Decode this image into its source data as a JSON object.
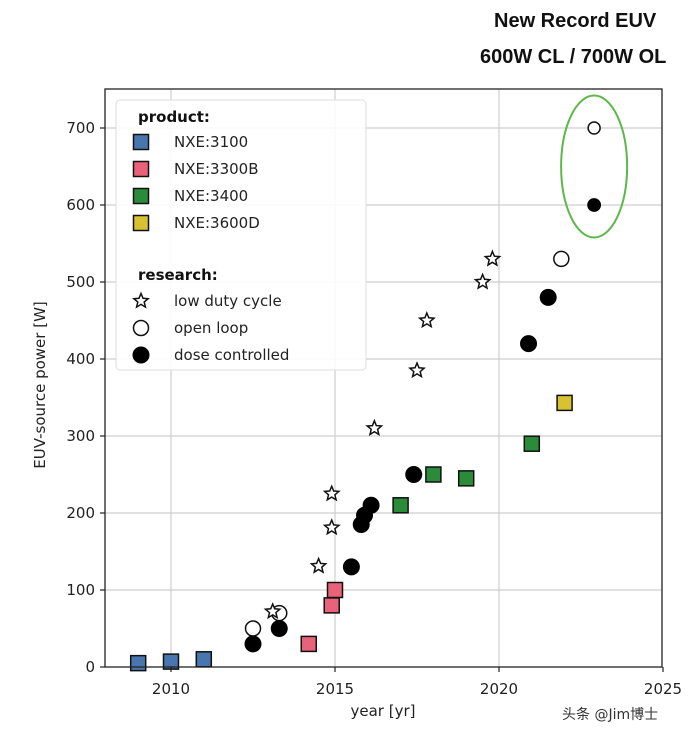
{
  "headline": {
    "line1": "New Record EUV",
    "line2": "600W CL / 700W OL"
  },
  "watermark": "头条 @Jim博士",
  "chart_data": {
    "type": "scatter",
    "title": "",
    "xlabel": "year [yr]",
    "ylabel": "EUV-source power [W]",
    "xlim": [
      2008,
      2025
    ],
    "ylim": [
      0,
      750
    ],
    "xticks": [
      2010,
      2015,
      2020,
      2025
    ],
    "yticks": [
      0,
      100,
      200,
      300,
      400,
      500,
      600,
      700
    ],
    "grid": true,
    "legend_position": "upper left",
    "legend": {
      "product_title": "product:",
      "research_title": "research:",
      "entries": [
        {
          "group": "product",
          "label": "NXE:3100",
          "marker": "square",
          "color": "#4a76b0"
        },
        {
          "group": "product",
          "label": "NXE:3300B",
          "marker": "square",
          "color": "#e8637a"
        },
        {
          "group": "product",
          "label": "NXE:3400",
          "marker": "square",
          "color": "#2a8c3a"
        },
        {
          "group": "product",
          "label": "NXE:3600D",
          "marker": "square",
          "color": "#d9c232"
        },
        {
          "group": "research",
          "label": "low duty cycle",
          "marker": "star",
          "color": "#ffffff"
        },
        {
          "group": "research",
          "label": "open loop",
          "marker": "circle-open",
          "color": "#ffffff"
        },
        {
          "group": "research",
          "label": "dose controlled",
          "marker": "circle-filled",
          "color": "#000000"
        }
      ]
    },
    "series": [
      {
        "name": "NXE:3100",
        "marker": "square",
        "color": "#4a76b0",
        "points": [
          [
            2009.0,
            5
          ],
          [
            2010.0,
            7
          ],
          [
            2011.0,
            10
          ]
        ]
      },
      {
        "name": "NXE:3300B",
        "marker": "square",
        "color": "#e8637a",
        "points": [
          [
            2014.2,
            30
          ],
          [
            2014.9,
            80
          ],
          [
            2015.0,
            100
          ]
        ]
      },
      {
        "name": "NXE:3400",
        "marker": "square",
        "color": "#2a8c3a",
        "points": [
          [
            2017.0,
            210
          ],
          [
            2018.0,
            250
          ],
          [
            2019.0,
            245
          ],
          [
            2021.0,
            290
          ]
        ]
      },
      {
        "name": "NXE:3600D",
        "marker": "square",
        "color": "#d9c232",
        "points": [
          [
            2022.0,
            343
          ]
        ]
      },
      {
        "name": "low duty cycle",
        "marker": "star",
        "color": "#ffffff",
        "points": [
          [
            2013.1,
            72
          ],
          [
            2014.5,
            131
          ],
          [
            2014.9,
            181
          ],
          [
            2014.9,
            225
          ],
          [
            2016.2,
            310
          ],
          [
            2017.5,
            385
          ],
          [
            2017.8,
            450
          ],
          [
            2019.5,
            500
          ],
          [
            2019.8,
            530
          ]
        ]
      },
      {
        "name": "open loop",
        "marker": "circle-open",
        "color": "#ffffff",
        "points": [
          [
            2012.5,
            50
          ],
          [
            2013.3,
            70
          ],
          [
            2021.9,
            530
          ],
          [
            2022.9,
            700
          ]
        ]
      },
      {
        "name": "dose controlled",
        "marker": "circle-filled",
        "color": "#000000",
        "points": [
          [
            2012.5,
            30
          ],
          [
            2013.3,
            50
          ],
          [
            2015.5,
            130
          ],
          [
            2015.8,
            185
          ],
          [
            2015.9,
            197
          ],
          [
            2016.1,
            210
          ],
          [
            2017.4,
            250
          ],
          [
            2020.9,
            420
          ],
          [
            2021.5,
            480
          ],
          [
            2022.9,
            600
          ]
        ]
      }
    ],
    "annotations": [
      {
        "type": "ellipse",
        "color": "#5cb848",
        "around_points": [
          [
            2022.9,
            700
          ],
          [
            2022.9,
            600
          ]
        ]
      }
    ]
  }
}
